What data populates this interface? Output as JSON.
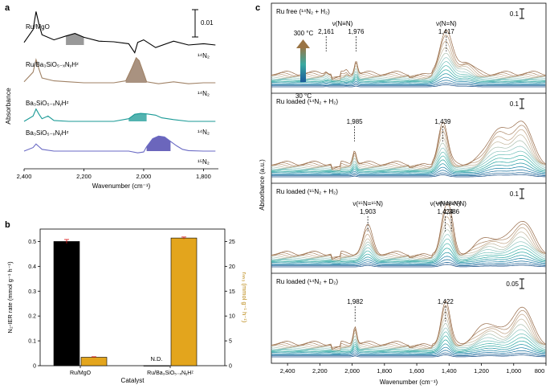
{
  "panel_labels": {
    "a": "a",
    "b": "b",
    "c": "c"
  },
  "chart_data": [
    {
      "panel": "a",
      "type": "line",
      "xlabel": "Wavenumber (cm⁻¹)",
      "ylabel": "Absorbance",
      "xlim": [
        2400,
        1750
      ],
      "xticks": [
        "2,400",
        "2,200",
        "2,000",
        "1,800"
      ],
      "scale_bar": "0.01",
      "series": [
        {
          "name": "Ru/MgO",
          "gas": "¹⁴N₂",
          "color": "#000000",
          "fill": "#777777",
          "peak": 2230,
          "x": [
            2400,
            2370,
            2360,
            2350,
            2340,
            2300,
            2260,
            2230,
            2200,
            2150,
            2100,
            2050,
            2030,
            2020,
            2000,
            1960,
            1900,
            1850,
            1800,
            1760
          ],
          "y": [
            0.2,
            1.2,
            2.6,
            1.6,
            0.8,
            0.4,
            0.7,
            0.9,
            0.6,
            0.3,
            0.25,
            0.1,
            -0.6,
            0.2,
            0.4,
            -0.2,
            0.3,
            0.0,
            0.1,
            0.0
          ]
        },
        {
          "name": "Ru/Ba₃SiO₅₋ₓNᵧHᶻ",
          "gas": "¹⁴N₂",
          "color": "#a08266",
          "fill": "#8c6d55",
          "peak": 2020,
          "x": [
            2400,
            2370,
            2360,
            2350,
            2340,
            2300,
            2250,
            2200,
            2150,
            2100,
            2060,
            2040,
            2025,
            2015,
            2000,
            1990,
            1950,
            1900,
            1850,
            1800,
            1760
          ],
          "y": [
            0.1,
            1.1,
            2.4,
            1.4,
            0.5,
            0.2,
            0.1,
            0.0,
            0.0,
            0.0,
            0.2,
            1.5,
            2.6,
            2.3,
            1.0,
            0.1,
            -0.1,
            0.1,
            -0.1,
            0.0,
            0.0
          ]
        },
        {
          "name": "Ba₃SiO₅₋ₓNᵧHᶻ",
          "gas": "¹⁴N₂",
          "color": "#1a9a96",
          "fill": "#1a9a96",
          "peak": 2010,
          "x": [
            2400,
            2370,
            2360,
            2350,
            2340,
            2320,
            2300,
            2250,
            2200,
            2150,
            2100,
            2050,
            2030,
            2010,
            1990,
            1960,
            1940,
            1900,
            1850,
            1800,
            1760
          ],
          "y": [
            0.0,
            0.6,
            1.4,
            0.8,
            0.3,
            0.6,
            0.1,
            0.0,
            0.0,
            0.0,
            0.0,
            0.3,
            0.8,
            0.9,
            0.85,
            0.7,
            0.4,
            0.2,
            0.0,
            0.0,
            0.0
          ]
        },
        {
          "name": "Ba₃SiO₅₋ₓNᵧHᶻ",
          "gas": "¹⁵N₂",
          "color": "#6a6ac4",
          "fill": "#3a33a6",
          "peak": 1950,
          "x": [
            2400,
            2370,
            2360,
            2350,
            2340,
            2300,
            2250,
            2200,
            2150,
            2100,
            2050,
            2020,
            2000,
            1990,
            1970,
            1950,
            1930,
            1910,
            1890,
            1870,
            1850,
            1800,
            1760
          ],
          "y": [
            0.0,
            0.4,
            0.8,
            0.5,
            0.2,
            0.0,
            0.0,
            0.0,
            0.0,
            0.0,
            0.0,
            -0.2,
            -0.1,
            0.5,
            1.4,
            1.7,
            1.6,
            1.1,
            0.6,
            0.2,
            0.05,
            0.0,
            0.0
          ]
        }
      ]
    },
    {
      "panel": "b",
      "type": "bar",
      "xlabel": "Catalyst",
      "ylabel": "N₂-IER rate (mmol g⁻¹ h⁻¹)",
      "ylabel_right": "rₙₕ₃ (mmol g⁻¹ h⁻¹)",
      "ylim": [
        0,
        0.55
      ],
      "ylim_right": [
        0,
        27.5
      ],
      "yticks": [
        "0",
        "0.1",
        "0.2",
        "0.3",
        "0.4",
        "0.5"
      ],
      "yticks_right": [
        "0",
        "5",
        "10",
        "15",
        "20",
        "25"
      ],
      "categories": [
        "Ru/MgO",
        "Ru/Ba₃SiO₅₋ₓNᵧHᶻ"
      ],
      "series": [
        {
          "axis": "left",
          "color": "#000000",
          "values": [
            0.5,
            0.0
          ],
          "errors": [
            0.008,
            0.0
          ]
        },
        {
          "axis": "right",
          "color": "#e3a51d",
          "values": [
            1.7,
            25.7
          ],
          "errors": [
            0.1,
            0.2
          ]
        }
      ],
      "annotations": [
        "N.D."
      ]
    },
    {
      "panel": "c",
      "type": "line",
      "xlabel": "Wavenumber (cm⁻¹)",
      "ylabel": "Absorbance (a.u.)",
      "xlim": [
        2500,
        800
      ],
      "xticks": [
        "2,400",
        "2,200",
        "2,000",
        "1,800",
        "1,600",
        "1,400",
        "1,200",
        "1,000",
        "800"
      ],
      "temperature_labels": {
        "high": "300 °C",
        "low": "30 °C"
      },
      "curve_count": 14,
      "subpanels": [
        {
          "title": "Ru free (¹⁴N₂ + H₂)",
          "scale": "0.1",
          "scale_value": 0.1,
          "annotations": [
            {
              "text": "2,161",
              "x": 2161
            },
            {
              "text": "1,976",
              "x": 1976
            },
            {
              "text": "1,417",
              "x": 1417
            },
            {
              "text": "ν(N≡N)",
              "x": 2060
            },
            {
              "text": "ν(N=N)",
              "x": 1417
            }
          ],
          "bands": [
            [
              2161,
              0.08,
              14
            ],
            [
              2035,
              0.07,
              12
            ],
            [
              1976,
              0.35,
              14
            ],
            [
              1420,
              1.0,
              55
            ],
            [
              1300,
              0.3,
              60
            ]
          ]
        },
        {
          "title": "Ru loaded (¹⁴N₂ + H₂)",
          "scale": "0.1",
          "scale_value": 0.1,
          "annotations": [
            {
              "text": "1,985",
              "x": 1985
            },
            {
              "text": "1,439",
              "x": 1439
            }
          ],
          "bands": [
            [
              1985,
              0.35,
              16
            ],
            [
              1439,
              1.0,
              40
            ],
            [
              1100,
              0.8,
              90
            ],
            [
              950,
              1.0,
              80
            ]
          ]
        },
        {
          "title": "Ru loaded (¹⁵N₂ + H₂)",
          "scale": "0.1",
          "scale_value": 0.1,
          "annotations": [
            {
              "text": "ν(¹⁵N=¹⁵N)",
              "x": 1903
            },
            {
              "text": "1,903",
              "x": 1903
            },
            {
              "text": "ν(¹⁴N=¹⁵N)",
              "x": 1424
            },
            {
              "text": "1,424",
              "x": 1424
            },
            {
              "text": "ν(¹⁵N=¹⁵N)",
              "x": 1386
            },
            {
              "text": "1,386",
              "x": 1386
            }
          ],
          "bands": [
            [
              1903,
              0.65,
              40
            ],
            [
              1424,
              1.0,
              40
            ],
            [
              1386,
              0.5,
              30
            ],
            [
              1150,
              0.4,
              100
            ],
            [
              950,
              0.8,
              90
            ]
          ]
        },
        {
          "title": "Ru loaded (¹⁴N₂ + D₂)",
          "scale": "0.05",
          "scale_value": 0.05,
          "annotations": [
            {
              "text": "1,982",
              "x": 1982
            },
            {
              "text": "1,422",
              "x": 1422
            }
          ],
          "bands": [
            [
              1982,
              0.45,
              16
            ],
            [
              1422,
              1.0,
              38
            ],
            [
              1150,
              0.5,
              100
            ],
            [
              950,
              0.9,
              80
            ]
          ]
        }
      ]
    }
  ]
}
